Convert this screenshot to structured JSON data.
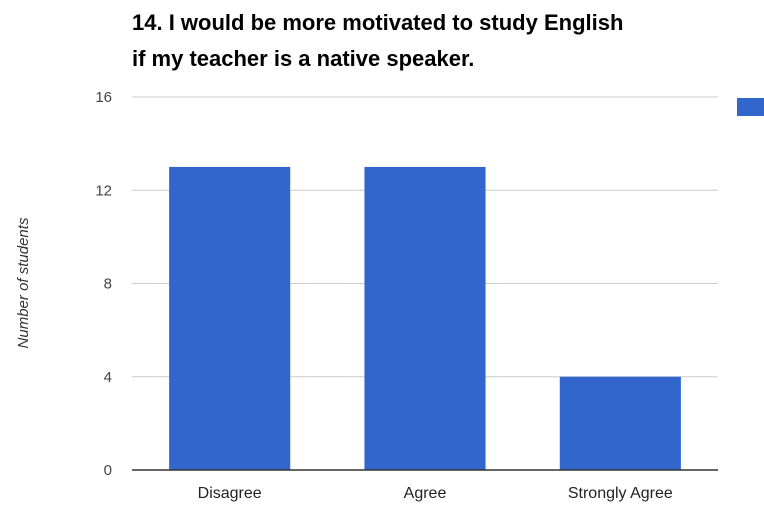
{
  "chart_data": {
    "type": "bar",
    "title_lines": [
      "14. I would be more motivated to study English",
      "if my teacher is a native speaker."
    ],
    "xlabel": "",
    "ylabel": "Number of students",
    "categories": [
      "Disagree",
      "Agree",
      "Strongly Agree"
    ],
    "series": [
      {
        "values": [
          13,
          13,
          4
        ]
      }
    ],
    "ylim": [
      0,
      16
    ],
    "yticks": [
      0,
      4,
      8,
      12,
      16
    ],
    "grid": true,
    "legend": {
      "position": "right",
      "entries": [
        ""
      ]
    }
  },
  "colors": {
    "bar": "#3366cc",
    "grid": "#cccccc",
    "axis": "#333333"
  }
}
